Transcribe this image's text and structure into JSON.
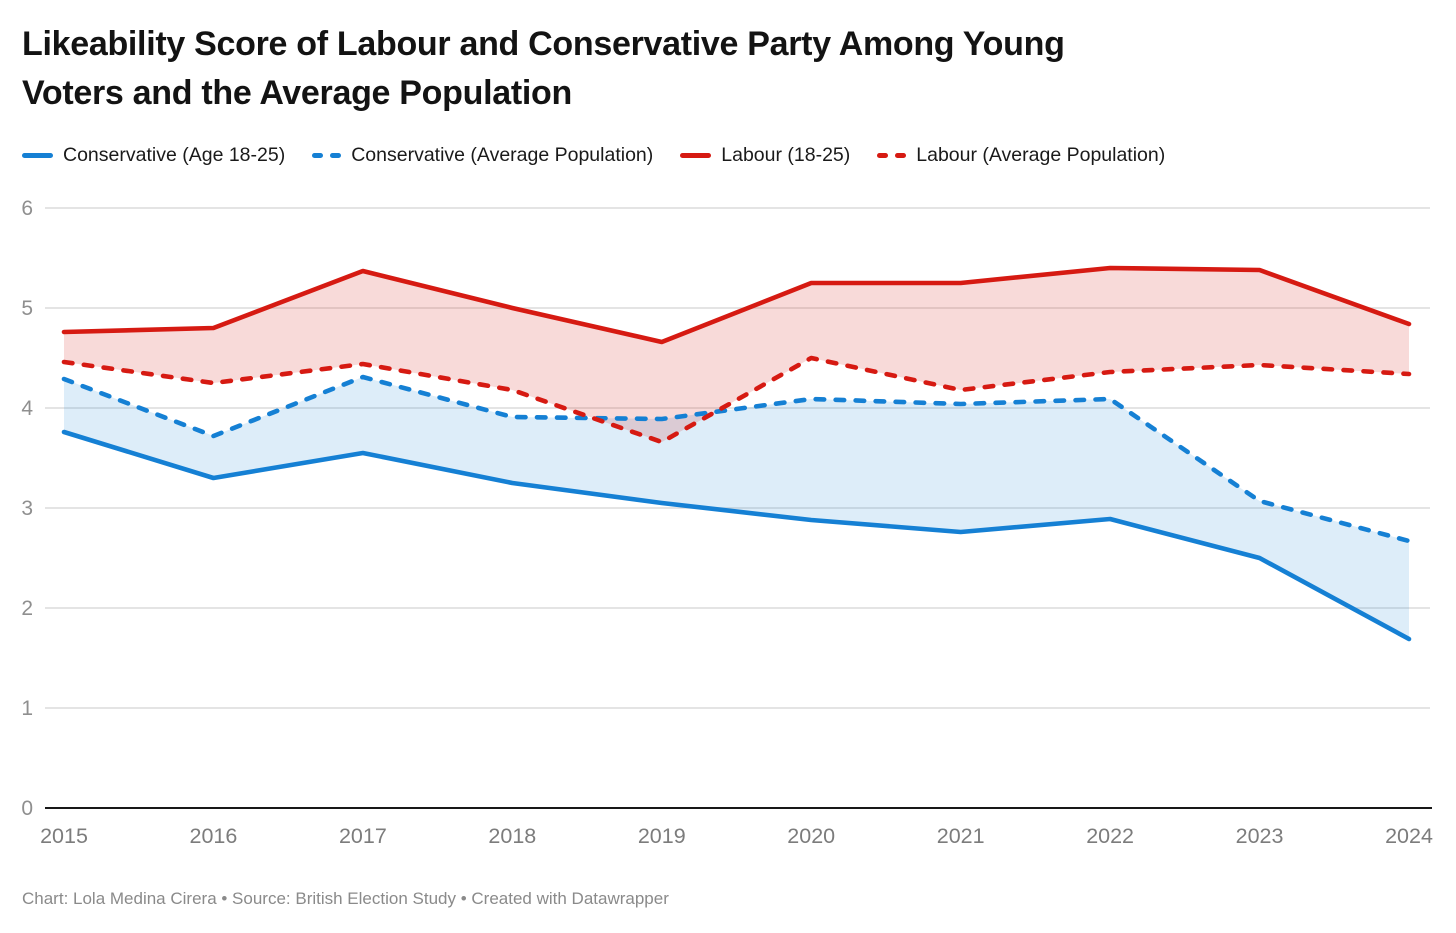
{
  "title": "Likeability Score of Labour and Conservative Party Among Young Voters and the Average Population",
  "title_lines": [
    "Likeability Score of Labour and Conservative Party Among Young",
    "Voters and the Average Population"
  ],
  "footer": "Chart: Lola Medina Cirera • Source: British Election Study • Created with Datawrapper",
  "colors": {
    "conservative_blue": "#1580d4",
    "labour_red": "#d61a12",
    "conservative_fill": "#ddeefa",
    "labour_fill": "#f9dcd6",
    "overlap_fill": "#d9cdd6",
    "gridline": "#dcdcdc",
    "axis_line": "#181818",
    "y_tick_label": "#8f8f8f",
    "x_tick_label": "#7c7c7c",
    "footer_text": "#8a8a8a",
    "title_text": "#131313",
    "legend_text": "#1a1a1a"
  },
  "chart_data": {
    "type": "line",
    "title": "Likeability Score of Labour and Conservative Party Among Young Voters and the Average Population",
    "x": [
      2015,
      2016,
      2017,
      2018,
      2019,
      2020,
      2021,
      2022,
      2023,
      2024
    ],
    "xlabel": "",
    "ylabel": "",
    "ylim": [
      0,
      6
    ],
    "yticks": [
      0,
      1,
      2,
      3,
      4,
      5,
      6
    ],
    "grid": true,
    "legend_position": "top",
    "series": [
      {
        "name": "Conservative (Age 18-25)",
        "style": "solid",
        "color_key": "conservative_blue",
        "values": [
          3.76,
          3.3,
          3.55,
          3.25,
          3.05,
          2.88,
          2.76,
          2.89,
          2.5,
          1.69
        ]
      },
      {
        "name": "Conservative (Average Population)",
        "style": "dashed",
        "color_key": "conservative_blue",
        "values": [
          4.29,
          3.72,
          4.31,
          3.91,
          3.89,
          4.09,
          4.04,
          4.09,
          3.07,
          2.67
        ]
      },
      {
        "name": "Labour (18-25)",
        "style": "solid",
        "color_key": "labour_red",
        "values": [
          4.76,
          4.8,
          5.37,
          5.0,
          4.66,
          5.25,
          5.25,
          5.4,
          5.38,
          4.84
        ]
      },
      {
        "name": "Labour (Average Population)",
        "style": "dashed",
        "color_key": "labour_red",
        "values": [
          4.46,
          4.25,
          4.44,
          4.18,
          3.66,
          4.5,
          4.18,
          4.36,
          4.43,
          4.34
        ]
      }
    ],
    "bands": [
      {
        "upper_series": 1,
        "lower_series": 0,
        "color_key": "conservative_blue",
        "opacity": 0.145
      },
      {
        "upper_series": 2,
        "lower_series": 3,
        "color_key": "labour_red",
        "opacity": 0.16
      }
    ]
  }
}
